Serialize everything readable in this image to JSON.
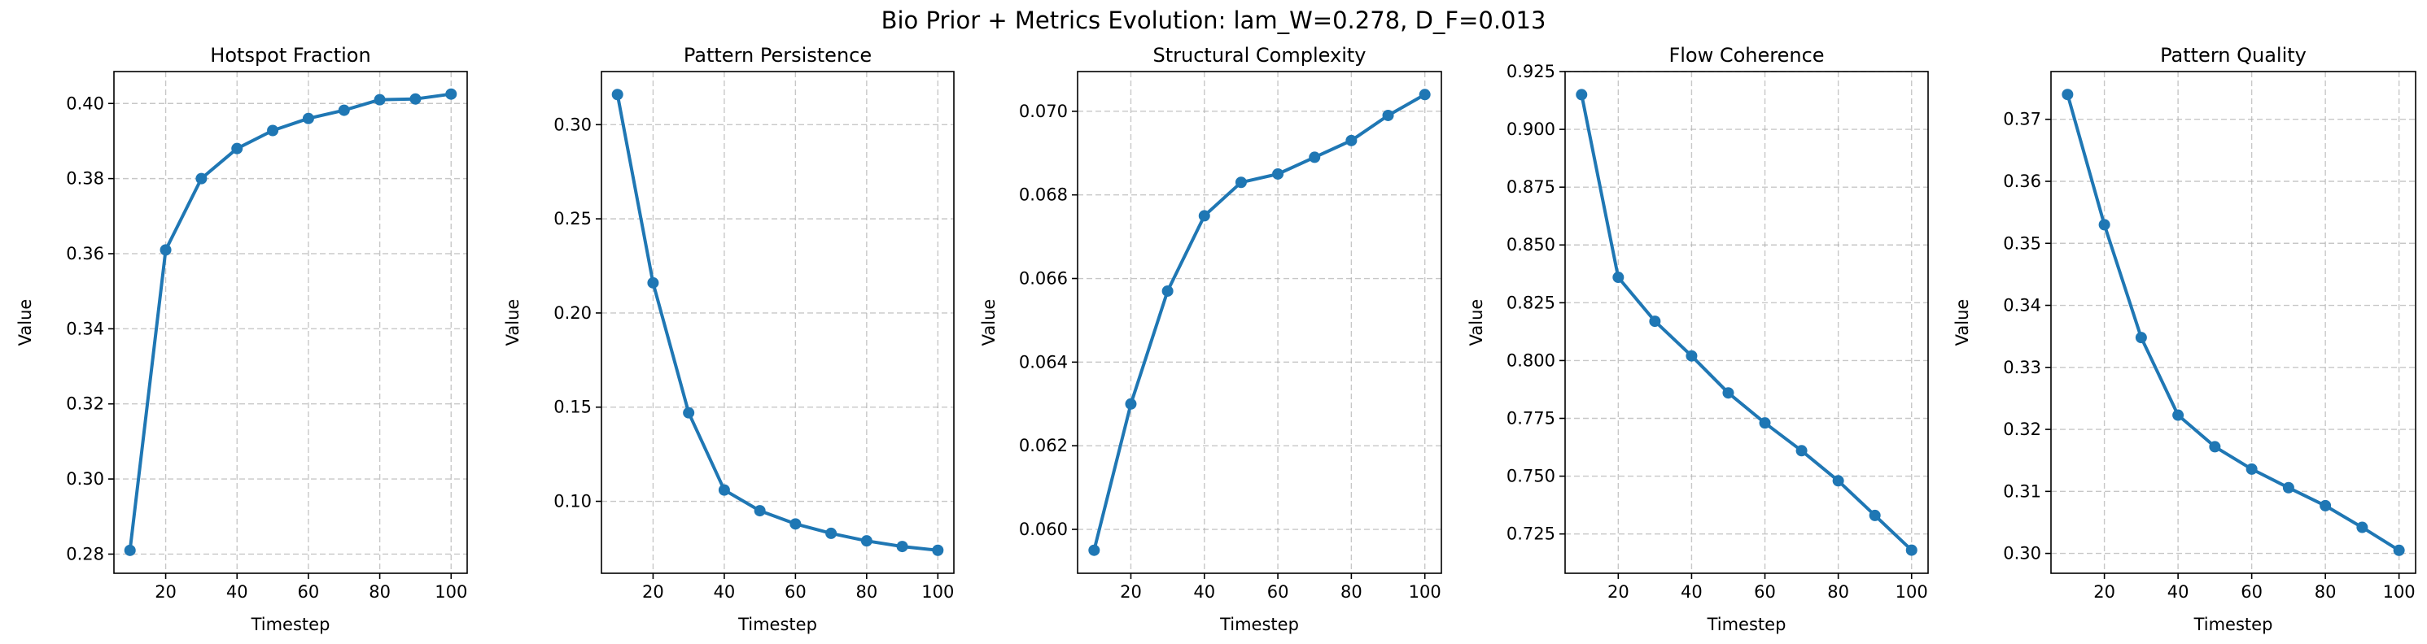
{
  "figure": {
    "title": "Bio Prior + Metrics Evolution: lam_W=0.278, D_F=0.013"
  },
  "style": {
    "line_color": "#1f77b4",
    "grid_color": "#b0b0b0"
  },
  "chart_data": [
    {
      "type": "line",
      "title": "Hotspot Fraction",
      "xlabel": "Timestep",
      "ylabel": "Value",
      "x": [
        10,
        20,
        30,
        40,
        50,
        60,
        70,
        80,
        90,
        100
      ],
      "series": [
        {
          "values": [
            0.281,
            0.361,
            0.38,
            0.388,
            0.3928,
            0.396,
            0.3982,
            0.401,
            0.4012,
            0.4025
          ]
        }
      ],
      "xlim": [
        5.5,
        104.5
      ],
      "ylim": [
        0.2749,
        0.4085
      ],
      "xticks": [
        20,
        40,
        60,
        80,
        100
      ],
      "xtick_labels": [
        "20",
        "40",
        "60",
        "80",
        "100"
      ],
      "yticks": [
        0.28,
        0.3,
        0.32,
        0.34,
        0.36,
        0.38,
        0.4
      ],
      "ytick_labels": [
        "0.28",
        "0.30",
        "0.32",
        "0.34",
        "0.36",
        "0.38",
        "0.40"
      ],
      "grid": true,
      "markers": true
    },
    {
      "type": "line",
      "title": "Pattern Persistence",
      "xlabel": "Timestep",
      "ylabel": "Value",
      "x": [
        10,
        20,
        30,
        40,
        50,
        60,
        70,
        80,
        90,
        100
      ],
      "series": [
        {
          "values": [
            0.316,
            0.216,
            0.147,
            0.106,
            0.095,
            0.088,
            0.083,
            0.079,
            0.076,
            0.074
          ]
        }
      ],
      "xlim": [
        5.5,
        104.5
      ],
      "ylim": [
        0.0618,
        0.3282
      ],
      "xticks": [
        20,
        40,
        60,
        80,
        100
      ],
      "xtick_labels": [
        "20",
        "40",
        "60",
        "80",
        "100"
      ],
      "yticks": [
        0.1,
        0.15,
        0.2,
        0.25,
        0.3
      ],
      "ytick_labels": [
        "0.10",
        "0.15",
        "0.20",
        "0.25",
        "0.30"
      ],
      "grid": true,
      "markers": true
    },
    {
      "type": "line",
      "title": "Structural Complexity",
      "xlabel": "Timestep",
      "ylabel": "Value",
      "x": [
        10,
        20,
        30,
        40,
        50,
        60,
        70,
        80,
        90,
        100
      ],
      "series": [
        {
          "values": [
            0.0595,
            0.063,
            0.0657,
            0.0675,
            0.0683,
            0.0685,
            0.0689,
            0.0693,
            0.0699,
            0.0704
          ]
        }
      ],
      "xlim": [
        5.5,
        104.5
      ],
      "ylim": [
        0.05895,
        0.07095
      ],
      "xticks": [
        20,
        40,
        60,
        80,
        100
      ],
      "xtick_labels": [
        "20",
        "40",
        "60",
        "80",
        "100"
      ],
      "yticks": [
        0.06,
        0.062,
        0.064,
        0.066,
        0.068,
        0.07
      ],
      "ytick_labels": [
        "0.060",
        "0.062",
        "0.064",
        "0.066",
        "0.068",
        "0.070"
      ],
      "grid": true,
      "markers": true
    },
    {
      "type": "line",
      "title": "Flow Coherence",
      "xlabel": "Timestep",
      "ylabel": "Value",
      "x": [
        10,
        20,
        30,
        40,
        50,
        60,
        70,
        80,
        90,
        100
      ],
      "series": [
        {
          "values": [
            0.915,
            0.836,
            0.817,
            0.802,
            0.786,
            0.773,
            0.761,
            0.748,
            0.733,
            0.718
          ]
        }
      ],
      "xlim": [
        5.5,
        104.5
      ],
      "ylim": [
        0.708,
        0.925
      ],
      "xticks": [
        20,
        40,
        60,
        80,
        100
      ],
      "xtick_labels": [
        "20",
        "40",
        "60",
        "80",
        "100"
      ],
      "yticks": [
        0.725,
        0.75,
        0.775,
        0.8,
        0.825,
        0.85,
        0.875,
        0.9,
        0.925
      ],
      "ytick_labels": [
        "0.725",
        "0.750",
        "0.775",
        "0.800",
        "0.825",
        "0.850",
        "0.875",
        "0.900",
        "0.925"
      ],
      "grid": true,
      "markers": true
    },
    {
      "type": "line",
      "title": "Pattern Quality",
      "xlabel": "Timestep",
      "ylabel": "Value",
      "x": [
        10,
        20,
        30,
        40,
        50,
        60,
        70,
        80,
        90,
        100
      ],
      "series": [
        {
          "values": [
            0.374,
            0.353,
            0.3348,
            0.3223,
            0.3172,
            0.3136,
            0.3106,
            0.3077,
            0.3042,
            0.3005
          ]
        }
      ],
      "xlim": [
        5.5,
        104.5
      ],
      "ylim": [
        0.2968,
        0.3777
      ],
      "xticks": [
        20,
        40,
        60,
        80,
        100
      ],
      "xtick_labels": [
        "20",
        "40",
        "60",
        "80",
        "100"
      ],
      "yticks": [
        0.3,
        0.31,
        0.32,
        0.33,
        0.34,
        0.35,
        0.36,
        0.37
      ],
      "ytick_labels": [
        "0.30",
        "0.31",
        "0.32",
        "0.33",
        "0.34",
        "0.35",
        "0.36",
        "0.37"
      ],
      "grid": true,
      "markers": true
    }
  ]
}
